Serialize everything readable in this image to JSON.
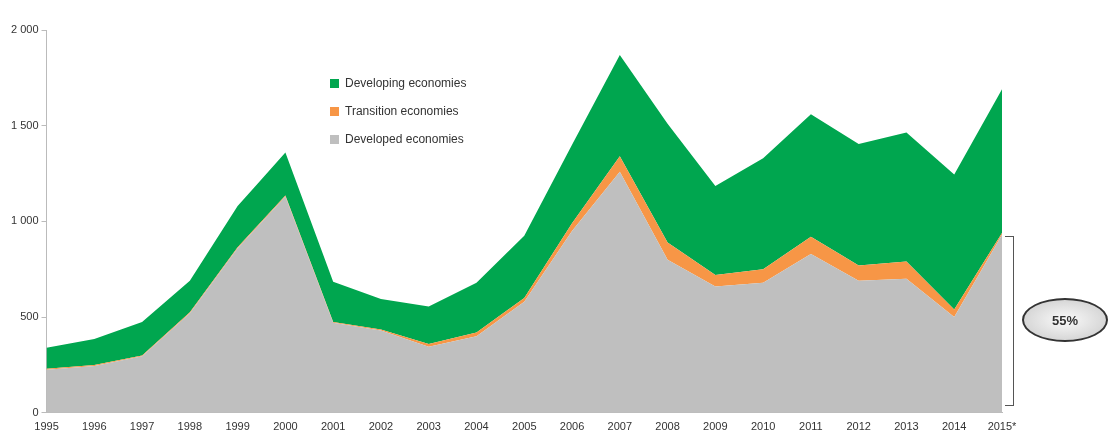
{
  "chart_data": {
    "type": "area",
    "stacked": true,
    "categories": [
      "1995",
      "1996",
      "1997",
      "1998",
      "1999",
      "2000",
      "2001",
      "2002",
      "2003",
      "2004",
      "2005",
      "2006",
      "2007",
      "2008",
      "2009",
      "2010",
      "2011",
      "2012",
      "2013",
      "2014",
      "2015*"
    ],
    "series": [
      {
        "name": "Developed economies",
        "color": "#bfbfbf",
        "values": [
          225,
          245,
          295,
          520,
          860,
          1130,
          470,
          430,
          345,
          400,
          580,
          950,
          1260,
          800,
          660,
          680,
          830,
          690,
          700,
          500,
          930
        ]
      },
      {
        "name": "Transition economies",
        "color": "#f79646",
        "values": [
          5,
          5,
          5,
          5,
          5,
          5,
          5,
          5,
          15,
          20,
          20,
          40,
          80,
          90,
          60,
          70,
          90,
          80,
          90,
          40,
          10
        ]
      },
      {
        "name": "Developing economies",
        "color": "#00a64f",
        "values": [
          110,
          135,
          175,
          165,
          215,
          225,
          210,
          160,
          195,
          260,
          325,
          410,
          530,
          620,
          465,
          580,
          640,
          635,
          675,
          705,
          750
        ]
      }
    ],
    "ylim": [
      0,
      2000
    ],
    "yticks": [
      {
        "value": 0,
        "label": "0"
      },
      {
        "value": 500,
        "label": "500"
      },
      {
        "value": 1000,
        "label": "1 000"
      },
      {
        "value": 1500,
        "label": "1 500"
      },
      {
        "value": 2000,
        "label": "2 000"
      }
    ],
    "grid": false,
    "legend": "top",
    "marker": "none",
    "annotations": [
      "55%"
    ]
  }
}
